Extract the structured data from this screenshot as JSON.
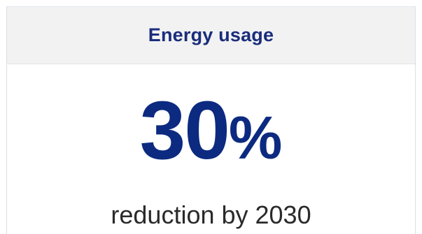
{
  "card": {
    "title": "Energy usage",
    "value": "30",
    "unit": "%",
    "caption": "reduction by 2030"
  },
  "colors": {
    "title": "#1a2d7c",
    "value": "#0c2a80",
    "caption": "#2a2a2a",
    "header_background": "#f2f2f2"
  }
}
